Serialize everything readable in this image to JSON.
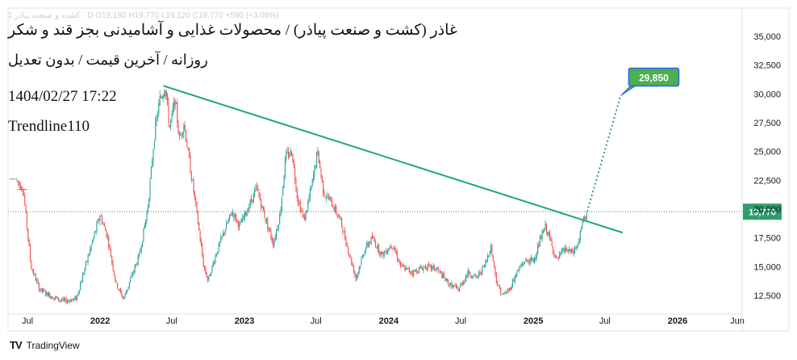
{
  "header": {
    "ticker_line": "1 كشت و صنعت پياذر · D  O19,180  H19,770  L19,120  C19,770  +590 (+3.08%)",
    "title": "غاذر (کشت و صنعت پیاذر) / محصولات غذایی و آشامیدنی بجز قند و شکر",
    "subtitle": "روزانه / آخرین قیمت / بدون تعدیل",
    "datetime": "1404/02/27 17:22",
    "indicator": "Trendline110"
  },
  "footer": {
    "brand": "TradingView",
    "logo": "TV"
  },
  "colors": {
    "up": "#26a69a",
    "down": "#ef5350",
    "trendline": "#1ea584",
    "projection": "#2e9e6a",
    "target_label": "#4caf50",
    "target_border": "#2962ff",
    "last_price": "#2e9e6a"
  },
  "chart_data": {
    "type": "candlestick",
    "price_axis": {
      "ticks": [
        "35,000",
        "32,500",
        "30,000",
        "27,500",
        "25,000",
        "22,500",
        "20,000",
        "17,500",
        "15,000",
        "12,500"
      ],
      "min": 11500,
      "max": 35500
    },
    "time_axis": {
      "ticks": [
        "Jul",
        "2022",
        "Jul",
        "2023",
        "Jul",
        "2024",
        "Jul",
        "2025",
        "Jul",
        "2026",
        "Jun"
      ],
      "bold": [
        "2022",
        "2023",
        "2024",
        "2025",
        "2026"
      ]
    },
    "last_price": {
      "value": 19770,
      "label": "19,770"
    },
    "target": {
      "value": 29850,
      "label": "29,850"
    },
    "trendline": {
      "start": 30700,
      "end": 17950
    },
    "price_path": [
      {
        "d": "2021-06-01",
        "p": 22600
      },
      {
        "d": "2021-06-20",
        "p": 21800
      },
      {
        "d": "2021-07-10",
        "p": 15000
      },
      {
        "d": "2021-08-01",
        "p": 13000
      },
      {
        "d": "2021-09-01",
        "p": 12400
      },
      {
        "d": "2021-10-01",
        "p": 12000
      },
      {
        "d": "2021-11-01",
        "p": 12200
      },
      {
        "d": "2021-11-20",
        "p": 14500
      },
      {
        "d": "2021-12-15",
        "p": 17500
      },
      {
        "d": "2022-01-01",
        "p": 19500
      },
      {
        "d": "2022-01-20",
        "p": 17500
      },
      {
        "d": "2022-02-10",
        "p": 13500
      },
      {
        "d": "2022-03-01",
        "p": 12200
      },
      {
        "d": "2022-03-20",
        "p": 14000
      },
      {
        "d": "2022-04-10",
        "p": 16000
      },
      {
        "d": "2022-05-01",
        "p": 20000
      },
      {
        "d": "2022-05-20",
        "p": 27000
      },
      {
        "d": "2022-06-01",
        "p": 29500
      },
      {
        "d": "2022-06-15",
        "p": 30700
      },
      {
        "d": "2022-06-25",
        "p": 27000
      },
      {
        "d": "2022-07-10",
        "p": 29500
      },
      {
        "d": "2022-07-20",
        "p": 26000
      },
      {
        "d": "2022-08-01",
        "p": 27500
      },
      {
        "d": "2022-08-15",
        "p": 24000
      },
      {
        "d": "2022-09-01",
        "p": 20000
      },
      {
        "d": "2022-09-20",
        "p": 15000
      },
      {
        "d": "2022-10-01",
        "p": 13800
      },
      {
        "d": "2022-10-20",
        "p": 16000
      },
      {
        "d": "2022-11-10",
        "p": 18000
      },
      {
        "d": "2022-12-01",
        "p": 19800
      },
      {
        "d": "2022-12-20",
        "p": 18500
      },
      {
        "d": "2023-01-15",
        "p": 20500
      },
      {
        "d": "2023-02-01",
        "p": 21800
      },
      {
        "d": "2023-02-20",
        "p": 19500
      },
      {
        "d": "2023-03-15",
        "p": 17000
      },
      {
        "d": "2023-04-01",
        "p": 19500
      },
      {
        "d": "2023-04-15",
        "p": 24500
      },
      {
        "d": "2023-05-01",
        "p": 25000
      },
      {
        "d": "2023-05-15",
        "p": 21000
      },
      {
        "d": "2023-06-01",
        "p": 19000
      },
      {
        "d": "2023-06-20",
        "p": 22000
      },
      {
        "d": "2023-07-05",
        "p": 25000
      },
      {
        "d": "2023-07-20",
        "p": 21500
      },
      {
        "d": "2023-08-10",
        "p": 20500
      },
      {
        "d": "2023-09-01",
        "p": 19000
      },
      {
        "d": "2023-09-20",
        "p": 16500
      },
      {
        "d": "2023-10-10",
        "p": 14000
      },
      {
        "d": "2023-11-01",
        "p": 16500
      },
      {
        "d": "2023-11-20",
        "p": 17500
      },
      {
        "d": "2023-12-15",
        "p": 16000
      },
      {
        "d": "2024-01-10",
        "p": 17000
      },
      {
        "d": "2024-02-01",
        "p": 15000
      },
      {
        "d": "2024-03-01",
        "p": 14500
      },
      {
        "d": "2024-04-01",
        "p": 15000
      },
      {
        "d": "2024-05-01",
        "p": 14800
      },
      {
        "d": "2024-06-01",
        "p": 13500
      },
      {
        "d": "2024-06-25",
        "p": 13000
      },
      {
        "d": "2024-07-20",
        "p": 14500
      },
      {
        "d": "2024-08-10",
        "p": 14000
      },
      {
        "d": "2024-09-01",
        "p": 15200
      },
      {
        "d": "2024-09-15",
        "p": 16800
      },
      {
        "d": "2024-10-01",
        "p": 13500
      },
      {
        "d": "2024-10-15",
        "p": 12500
      },
      {
        "d": "2024-11-01",
        "p": 13000
      },
      {
        "d": "2024-11-20",
        "p": 14500
      },
      {
        "d": "2024-12-10",
        "p": 15500
      },
      {
        "d": "2025-01-01",
        "p": 15500
      },
      {
        "d": "2025-01-20",
        "p": 17500
      },
      {
        "d": "2025-02-01",
        "p": 18500
      },
      {
        "d": "2025-02-15",
        "p": 17000
      },
      {
        "d": "2025-03-01",
        "p": 15500
      },
      {
        "d": "2025-03-20",
        "p": 16500
      },
      {
        "d": "2025-04-10",
        "p": 16200
      },
      {
        "d": "2025-04-25",
        "p": 17000
      },
      {
        "d": "2025-05-05",
        "p": 18800
      },
      {
        "d": "2025-05-17",
        "p": 19770
      }
    ]
  }
}
